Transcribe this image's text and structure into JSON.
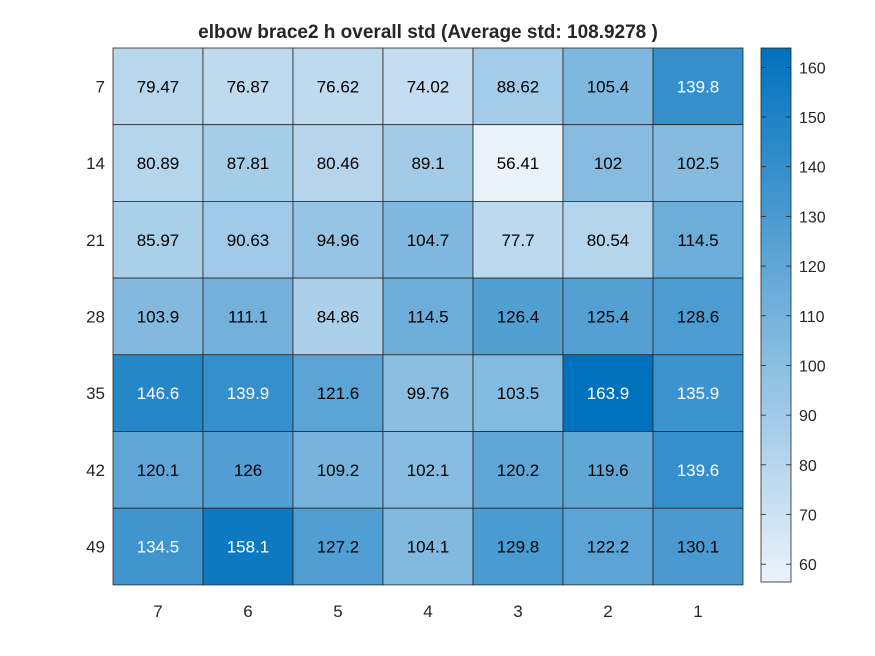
{
  "chart_data": {
    "type": "heatmap",
    "title": "elbow brace2 h overall std (Average std: 108.9278 )",
    "xlabel": "",
    "ylabel": "",
    "x_categories": [
      "7",
      "6",
      "5",
      "4",
      "3",
      "2",
      "1"
    ],
    "y_categories": [
      "7",
      "14",
      "21",
      "28",
      "35",
      "42",
      "49"
    ],
    "values": [
      [
        79.47,
        76.87,
        76.62,
        74.02,
        88.62,
        105.4,
        139.8
      ],
      [
        80.89,
        87.81,
        80.46,
        89.1,
        56.41,
        102,
        102.5
      ],
      [
        85.97,
        90.63,
        94.96,
        104.7,
        77.7,
        80.54,
        114.5
      ],
      [
        103.9,
        111.1,
        84.86,
        114.5,
        126.4,
        125.4,
        128.6
      ],
      [
        146.6,
        139.9,
        121.6,
        99.76,
        103.5,
        163.9,
        135.9
      ],
      [
        120.1,
        126,
        109.2,
        102.1,
        120.2,
        119.6,
        139.6
      ],
      [
        134.5,
        158.1,
        127.2,
        104.1,
        129.8,
        122.2,
        130.1
      ]
    ],
    "cell_labels": [
      [
        "79.47",
        "76.87",
        "76.62",
        "74.02",
        "88.62",
        "105.4",
        "139.8"
      ],
      [
        "80.89",
        "87.81",
        "80.46",
        "89.1",
        "56.41",
        "102",
        "102.5"
      ],
      [
        "85.97",
        "90.63",
        "94.96",
        "104.7",
        "77.7",
        "80.54",
        "114.5"
      ],
      [
        "103.9",
        "111.1",
        "84.86",
        "114.5",
        "126.4",
        "125.4",
        "128.6"
      ],
      [
        "146.6",
        "139.9",
        "121.6",
        "99.76",
        "103.5",
        "163.9",
        "135.9"
      ],
      [
        "120.1",
        "126",
        "109.2",
        "102.1",
        "120.2",
        "119.6",
        "139.6"
      ],
      [
        "134.5",
        "158.1",
        "127.2",
        "104.1",
        "129.8",
        "122.2",
        "130.1"
      ]
    ],
    "colorbar": {
      "range": [
        56.41,
        163.9
      ],
      "ticks": [
        60,
        70,
        80,
        90,
        100,
        110,
        120,
        130,
        140,
        150,
        160
      ],
      "colormap": [
        "#eaf2fa",
        "#0072bd"
      ]
    },
    "cell_border_color": "#262626",
    "text_colors": {
      "dark": "#000000",
      "light": "#ffffff"
    }
  }
}
